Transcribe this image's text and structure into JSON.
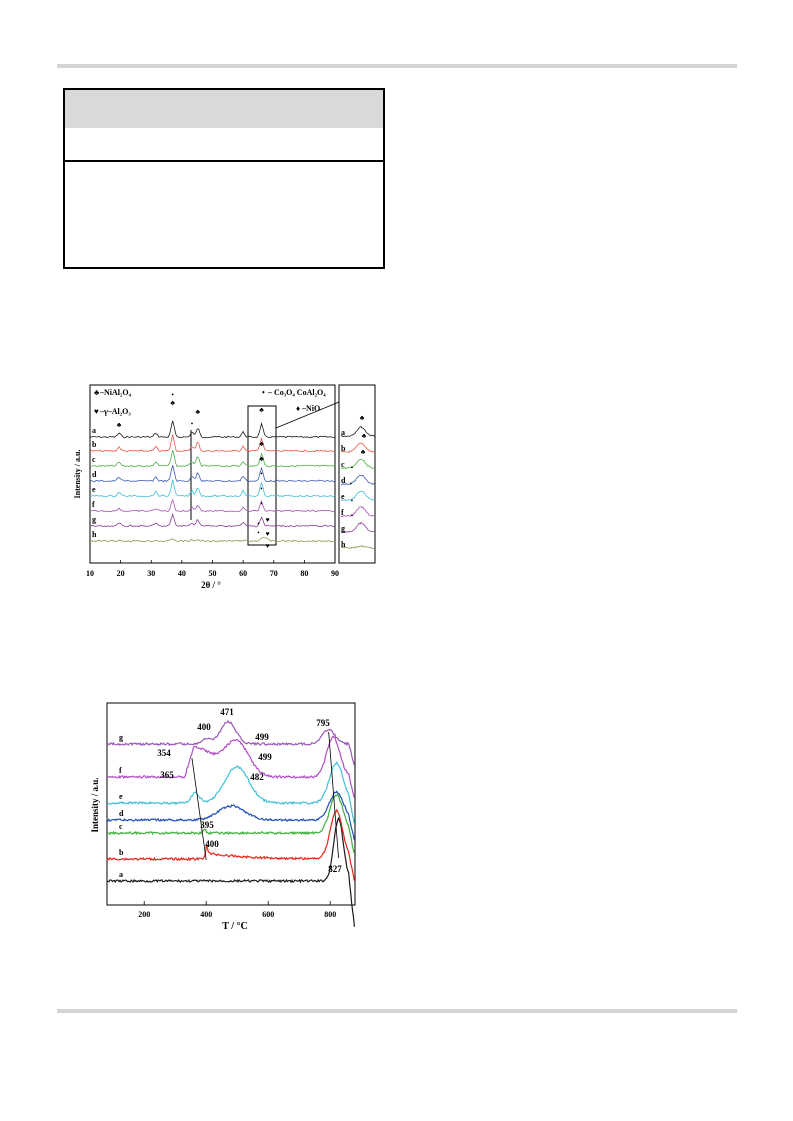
{
  "chart_data": [
    {
      "type": "line",
      "xlabel": "2θ / °",
      "ylabel": "Intensity / a.u.",
      "xlim": [
        10,
        90
      ],
      "xticks": [
        10,
        20,
        30,
        40,
        50,
        60,
        70,
        80,
        90
      ],
      "legend": [
        {
          "symbol": "club",
          "text": "–NiAl₂O₄"
        },
        {
          "symbol": "heart",
          "text": "–γ–Al₂O₃"
        },
        {
          "symbol": "dot",
          "text": "– Co₃O₄ CoAl₂O₄"
        },
        {
          "symbol": "diamond",
          "text": "–NiO"
        }
      ],
      "series": [
        {
          "name": "a",
          "color": "#1a1a1a"
        },
        {
          "name": "b",
          "color": "#e8554a"
        },
        {
          "name": "c",
          "color": "#4fae48"
        },
        {
          "name": "d",
          "color": "#3e5fb3"
        },
        {
          "name": "e",
          "color": "#3fc0d6"
        },
        {
          "name": "f",
          "color": "#a752b5"
        },
        {
          "name": "g",
          "color": "#8a3f9a"
        },
        {
          "name": "h",
          "color": "#8a9a5a"
        }
      ],
      "inset_series": [
        "a",
        "b",
        "c",
        "d",
        "e",
        "f",
        "g",
        "h"
      ]
    },
    {
      "type": "line",
      "xlabel": "T / °C",
      "ylabel": "Intensity / a.u.",
      "xlim": [
        80,
        880
      ],
      "xticks": [
        200,
        400,
        600,
        800
      ],
      "series": [
        {
          "name": "a",
          "color": "#1a1a1a",
          "peaks": [
            {
              "x": 827,
              "label": "827"
            }
          ]
        },
        {
          "name": "b",
          "color": "#e8241a",
          "peaks": [
            {
              "x": 400,
              "label": "400"
            }
          ]
        },
        {
          "name": "c",
          "color": "#3fae3c",
          "peaks": [
            {
              "x": 395,
              "label": "395"
            }
          ]
        },
        {
          "name": "d",
          "color": "#1f4fb3",
          "peaks": [
            {
              "x": 482,
              "label": "482"
            }
          ]
        },
        {
          "name": "e",
          "color": "#3fc0d6",
          "peaks": [
            {
              "x": 365,
              "label": "365"
            },
            {
              "x": 499,
              "label": "499"
            }
          ]
        },
        {
          "name": "f",
          "color": "#b04fc4",
          "peaks": [
            {
              "x": 354,
              "label": "354"
            },
            {
              "x": 499,
              "label": "499"
            }
          ]
        },
        {
          "name": "g",
          "color": "#9a58b8",
          "peaks": [
            {
              "x": 400,
              "label": "400"
            },
            {
              "x": 471,
              "label": "471"
            },
            {
              "x": 795,
              "label": "795"
            }
          ]
        }
      ]
    }
  ]
}
